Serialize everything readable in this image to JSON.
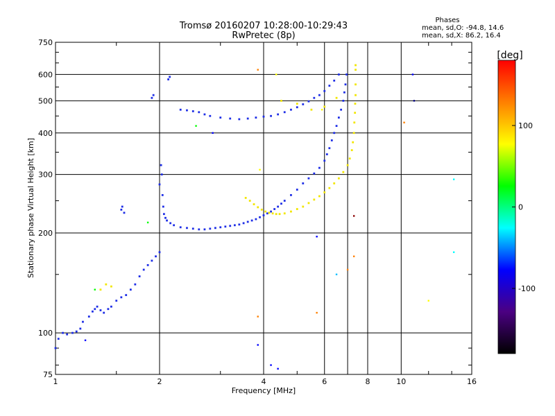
{
  "chart_data": {
    "type": "scatter",
    "title": "Tromsø 20160207 10:28:00-10:29:43",
    "subtitle": "RwPretec (8p)",
    "xlabel": "Frequency [MHz]",
    "ylabel": "Stationary phase Virtual Height [km]",
    "x_scale": "log",
    "y_scale": "log",
    "xlim": [
      1,
      16
    ],
    "ylim": [
      75,
      750
    ],
    "x_ticks": [
      1,
      2,
      4,
      6,
      8,
      10,
      16
    ],
    "y_ticks": [
      75,
      100,
      200,
      300,
      400,
      500,
      600,
      750
    ],
    "x_gridlines": [
      2,
      4,
      6,
      7,
      8,
      10
    ],
    "y_gridlines": [
      100,
      200,
      300,
      400,
      500,
      600
    ],
    "grid": true,
    "phases_header": "Phases",
    "phase_stats": [
      "mean, sd,O: -94.8, 14.6",
      "mean, sd,X:  86.2, 16.4"
    ],
    "colorbar": {
      "label": "[deg]",
      "range": [
        -180,
        180
      ],
      "ticks": [
        100,
        0,
        -100
      ],
      "colors": [
        "#000000",
        "#4b0082",
        "#0000ff",
        "#00ffff",
        "#00ff00",
        "#ffff00",
        "#ff8000",
        "#ff0000"
      ]
    },
    "series": [
      {
        "name": "O",
        "color": "#1e2ee6",
        "x": [
          1.0,
          1.02,
          1.05,
          1.08,
          1.12,
          1.15,
          1.18,
          1.2,
          1.25,
          1.28,
          1.3,
          1.32,
          1.35,
          1.38,
          1.42,
          1.45,
          1.5,
          1.55,
          1.6,
          1.65,
          1.7,
          1.75,
          1.8,
          1.85,
          1.9,
          1.95,
          2.0,
          2.0,
          2.02,
          2.03,
          2.04,
          2.05,
          2.06,
          2.08,
          2.1,
          2.15,
          2.2,
          2.3,
          2.4,
          2.5,
          2.6,
          2.7,
          2.8,
          2.9,
          3.0,
          3.1,
          3.2,
          3.3,
          3.4,
          3.5,
          3.6,
          3.7,
          3.8,
          3.9,
          4.0,
          4.1,
          4.2,
          4.3,
          4.4,
          4.5,
          4.6,
          4.8,
          5.0,
          5.2,
          5.4,
          5.6,
          5.8,
          6.0,
          6.1,
          6.2,
          6.3,
          6.4,
          6.5,
          6.6,
          6.7,
          6.8,
          6.85,
          6.9,
          6.95,
          2.3,
          2.4,
          2.5,
          2.6,
          2.7,
          2.8,
          3.0,
          3.2,
          3.4,
          3.6,
          3.8,
          4.0,
          4.2,
          4.4,
          4.6,
          4.8,
          5.0,
          5.2,
          5.4,
          5.6,
          5.8,
          6.0,
          6.2,
          6.4,
          6.6,
          1.55,
          1.56,
          1.58,
          1.9,
          1.92,
          2.12,
          2.14
        ],
        "y": [
          90,
          96,
          100,
          99,
          100,
          101,
          103,
          108,
          112,
          116,
          118,
          120,
          117,
          115,
          118,
          120,
          125,
          128,
          130,
          135,
          140,
          148,
          155,
          160,
          165,
          170,
          175,
          280,
          320,
          300,
          260,
          240,
          228,
          222,
          218,
          214,
          211,
          208,
          207,
          206,
          205,
          205,
          206,
          207,
          208,
          209,
          210,
          211,
          212,
          214,
          216,
          218,
          220,
          223,
          226,
          229,
          232,
          236,
          240,
          245,
          250,
          260,
          270,
          282,
          292,
          302,
          314,
          330,
          345,
          360,
          380,
          400,
          420,
          445,
          470,
          500,
          530,
          560,
          600,
          470,
          468,
          465,
          462,
          455,
          450,
          445,
          442,
          440,
          442,
          445,
          448,
          450,
          455,
          462,
          470,
          478,
          488,
          498,
          510,
          520,
          535,
          555,
          575,
          600,
          235,
          240,
          230,
          510,
          520,
          580,
          590
        ]
      },
      {
        "name": "X",
        "color": "#f2e600",
        "x": [
          3.55,
          3.65,
          3.75,
          3.85,
          3.95,
          4.05,
          4.15,
          4.25,
          4.35,
          4.45,
          4.6,
          4.8,
          5.0,
          5.2,
          5.4,
          5.6,
          5.8,
          6.0,
          6.2,
          6.4,
          6.6,
          6.8,
          7.0,
          7.1,
          7.2,
          7.25,
          7.3,
          7.32,
          7.35,
          7.36,
          7.38,
          7.38,
          4.5,
          5.0,
          5.5,
          6.0,
          6.5,
          1.4,
          1.45,
          1.35,
          7.38,
          7.38
        ],
        "y": [
          255,
          250,
          244,
          239,
          235,
          232,
          230,
          229,
          228,
          228,
          229,
          232,
          236,
          240,
          246,
          252,
          258,
          265,
          273,
          282,
          292,
          305,
          320,
          335,
          355,
          375,
          400,
          430,
          460,
          490,
          520,
          560,
          500,
          490,
          470,
          480,
          510,
          140,
          138,
          135,
          620,
          640
        ]
      }
    ],
    "scatter_noise": [
      {
        "x": 3.85,
        "y": 620,
        "color": "#ff8000"
      },
      {
        "x": 4.35,
        "y": 600,
        "color": "#ffff00"
      },
      {
        "x": 5.9,
        "y": 470,
        "color": "#ffff00"
      },
      {
        "x": 10.2,
        "y": 430,
        "color": "#ff8000"
      },
      {
        "x": 10.8,
        "y": 600,
        "color": "#0000ff"
      },
      {
        "x": 10.9,
        "y": 500,
        "color": "#000080"
      },
      {
        "x": 14.2,
        "y": 290,
        "color": "#00ffff"
      },
      {
        "x": 14.2,
        "y": 175,
        "color": "#00ffff"
      },
      {
        "x": 12.0,
        "y": 125,
        "color": "#ffff00"
      },
      {
        "x": 7.3,
        "y": 225,
        "color": "#8b0000"
      },
      {
        "x": 7.3,
        "y": 170,
        "color": "#ff8000"
      },
      {
        "x": 7.0,
        "y": 155,
        "color": "#ff8000"
      },
      {
        "x": 6.5,
        "y": 150,
        "color": "#00bfff"
      },
      {
        "x": 5.7,
        "y": 195,
        "color": "#0000ff"
      },
      {
        "x": 5.7,
        "y": 115,
        "color": "#ff8000"
      },
      {
        "x": 3.85,
        "y": 112,
        "color": "#ff8000"
      },
      {
        "x": 3.85,
        "y": 92,
        "color": "#0000ff"
      },
      {
        "x": 4.2,
        "y": 80,
        "color": "#0000ff"
      },
      {
        "x": 4.4,
        "y": 78,
        "color": "#0000ff"
      },
      {
        "x": 2.85,
        "y": 400,
        "color": "#0000ff"
      },
      {
        "x": 3.9,
        "y": 310,
        "color": "#ffff00"
      },
      {
        "x": 1.85,
        "y": 215,
        "color": "#00ff00"
      },
      {
        "x": 1.3,
        "y": 135,
        "color": "#00ff00"
      },
      {
        "x": 1.22,
        "y": 95,
        "color": "#0000ff"
      },
      {
        "x": 2.55,
        "y": 420,
        "color": "#00ff00"
      }
    ]
  }
}
